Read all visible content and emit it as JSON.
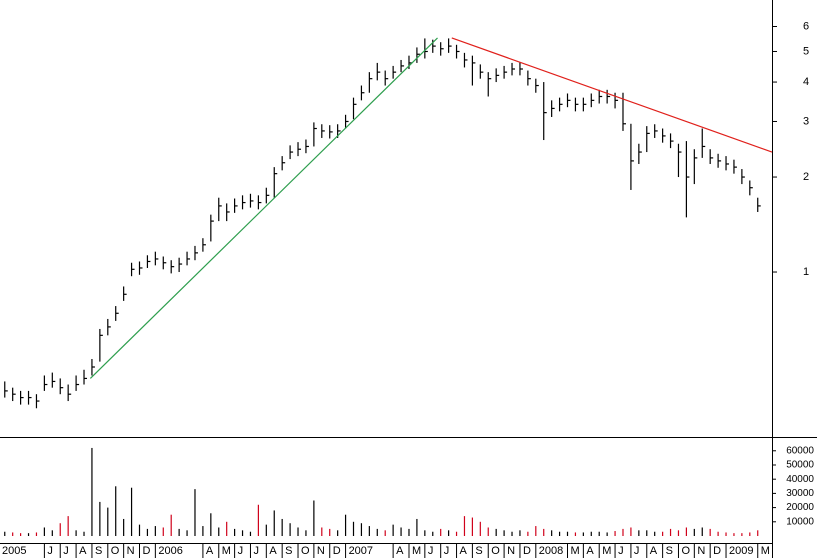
{
  "chart_data": [
    {
      "type": "ohlc",
      "log_scale": true,
      "x": [
        2.5,
        3,
        3.5,
        4,
        4.5,
        5,
        5.5,
        6,
        6.5,
        7,
        7.5,
        8,
        8.5,
        9,
        9.5,
        10,
        10.5,
        11,
        11.5,
        12,
        12.5,
        13,
        13.5,
        14,
        14.5,
        15,
        15.5,
        16,
        16.5,
        17,
        17.5,
        18,
        18.5,
        19,
        19.5,
        20,
        20.5,
        21,
        21.5,
        22,
        22.5,
        23,
        23.5,
        24,
        24.5,
        25,
        25.5,
        26,
        26.5,
        27,
        27.5,
        28,
        28.5,
        29,
        29.5,
        30,
        30.5,
        31,
        31.5,
        32,
        32.5,
        33,
        33.5,
        34,
        34.5,
        35,
        35.5,
        36,
        36.5,
        37,
        37.5,
        38,
        38.5,
        39,
        39.5,
        40,
        40.5,
        41,
        41.5,
        42,
        42.5,
        43,
        43.5,
        44,
        44.5,
        45,
        45.5,
        46,
        46.5,
        47,
        47.5,
        48,
        48.5,
        49,
        49.5,
        50
      ],
      "high": [
        0.45,
        0.43,
        0.42,
        0.42,
        0.41,
        0.47,
        0.48,
        0.46,
        0.44,
        0.47,
        0.49,
        0.53,
        0.66,
        0.71,
        0.78,
        0.9,
        1.07,
        1.08,
        1.13,
        1.16,
        1.12,
        1.09,
        1.11,
        1.16,
        1.21,
        1.28,
        1.52,
        1.72,
        1.65,
        1.71,
        1.75,
        1.77,
        1.75,
        1.85,
        2.15,
        2.33,
        2.52,
        2.58,
        2.63,
        2.98,
        2.94,
        2.92,
        2.94,
        3.15,
        3.57,
        3.9,
        4.3,
        4.6,
        4.35,
        4.5,
        4.7,
        4.85,
        5.15,
        5.5,
        5.45,
        5.35,
        5.5,
        5.25,
        4.95,
        4.85,
        4.55,
        4.3,
        4.42,
        4.5,
        4.6,
        4.62,
        4.35,
        4.1,
        4.0,
        3.5,
        3.57,
        3.68,
        3.57,
        3.57,
        3.68,
        3.78,
        3.78,
        3.7,
        3.7,
        2.95,
        2.55,
        2.9,
        2.94,
        2.85,
        2.75,
        2.55,
        2.6,
        2.45,
        2.85,
        2.45,
        2.37,
        2.33,
        2.27,
        2.12,
        1.95,
        1.72
      ],
      "low": [
        0.4,
        0.39,
        0.38,
        0.38,
        0.37,
        0.42,
        0.43,
        0.41,
        0.39,
        0.42,
        0.44,
        0.47,
        0.52,
        0.63,
        0.7,
        0.81,
        0.97,
        0.98,
        1.03,
        1.05,
        1.02,
        0.99,
        1.0,
        1.05,
        1.09,
        1.16,
        1.25,
        1.45,
        1.45,
        1.54,
        1.58,
        1.6,
        1.58,
        1.65,
        1.72,
        2.1,
        2.28,
        2.33,
        2.38,
        2.5,
        2.66,
        2.65,
        2.66,
        2.85,
        3.05,
        3.5,
        3.7,
        4.05,
        3.9,
        4.1,
        4.3,
        4.4,
        4.6,
        4.75,
        4.95,
        4.85,
        4.95,
        4.75,
        4.45,
        3.9,
        4.1,
        3.6,
        4.0,
        4.1,
        4.2,
        4.2,
        3.9,
        3.7,
        2.62,
        3.1,
        3.23,
        3.33,
        3.23,
        3.23,
        3.33,
        3.42,
        3.42,
        3.3,
        2.8,
        1.82,
        2.2,
        2.4,
        2.66,
        2.57,
        2.47,
        2.0,
        1.49,
        1.9,
        2.3,
        2.2,
        2.14,
        2.1,
        2.05,
        1.9,
        1.75,
        1.55
      ],
      "close": [
        0.42,
        0.41,
        0.4,
        0.4,
        0.39,
        0.44,
        0.45,
        0.43,
        0.41,
        0.44,
        0.46,
        0.5,
        0.63,
        0.67,
        0.74,
        0.85,
        1.02,
        1.03,
        1.08,
        1.1,
        1.07,
        1.04,
        1.06,
        1.1,
        1.15,
        1.22,
        1.45,
        1.62,
        1.55,
        1.62,
        1.66,
        1.68,
        1.66,
        1.75,
        2.05,
        2.22,
        2.4,
        2.45,
        2.5,
        2.85,
        2.8,
        2.78,
        2.8,
        3.0,
        3.4,
        3.7,
        4.1,
        4.3,
        4.1,
        4.3,
        4.5,
        4.6,
        4.9,
        5.0,
        5.2,
        5.1,
        5.2,
        5.0,
        4.7,
        4.6,
        4.3,
        4.1,
        4.2,
        4.3,
        4.4,
        4.4,
        4.1,
        3.9,
        3.2,
        3.3,
        3.4,
        3.5,
        3.4,
        3.4,
        3.5,
        3.6,
        3.6,
        3.5,
        2.95,
        2.25,
        2.4,
        2.75,
        2.8,
        2.7,
        2.6,
        2.4,
        2.0,
        2.3,
        2.5,
        2.3,
        2.25,
        2.2,
        2.15,
        2.0,
        1.85,
        1.62
      ],
      "color": "#000000",
      "xlim": [
        2.2,
        50.9
      ],
      "ylim": [
        0.3,
        7.28
      ],
      "yticks": [
        1,
        2,
        3,
        4,
        5,
        6
      ],
      "trendlines": [
        {
          "color": "#2e9e4e",
          "x": [
            7.9,
            29.8
          ],
          "y": [
            0.46,
            5.52
          ]
        },
        {
          "color": "#e0201b",
          "x": [
            30.7,
            50.9
          ],
          "y": [
            5.52,
            2.4
          ]
        }
      ]
    },
    {
      "type": "volume",
      "values": [
        3000,
        2500,
        2000,
        2000,
        2500,
        6000,
        4000,
        9000,
        14000,
        4000,
        3000,
        62000,
        24000,
        20000,
        35000,
        12000,
        34000,
        8000,
        5000,
        7000,
        6000,
        15000,
        5000,
        4000,
        33000,
        7000,
        16000,
        6000,
        10000,
        5000,
        4000,
        3000,
        22000,
        8000,
        18000,
        12000,
        9000,
        6000,
        4000,
        25000,
        6000,
        5000,
        4000,
        15000,
        10000,
        9000,
        7000,
        5000,
        4000,
        8000,
        6000,
        5000,
        12000,
        4000,
        3000,
        5000,
        4000,
        3000,
        14000,
        13000,
        10000,
        6000,
        5000,
        4000,
        3000,
        4000,
        3000,
        7000,
        5000,
        4000,
        3000,
        3000,
        2500,
        2500,
        3000,
        3000,
        2500,
        3500,
        5000,
        6000,
        4000,
        4000,
        3000,
        3000,
        5000,
        4000,
        6000,
        5000,
        6000,
        5000,
        3000,
        2500,
        2000,
        2000,
        2500,
        4000
      ],
      "up_color": "#000000",
      "down_color": "#d0021b",
      "ylim": [
        0,
        69000
      ],
      "yticks": [
        10000,
        20000,
        30000,
        40000,
        50000,
        60000
      ]
    },
    {
      "type": "time_axis",
      "xticks": [
        {
          "value": 0,
          "label": "2005"
        },
        {
          "value": 5,
          "label": "J"
        },
        {
          "value": 6,
          "label": "J"
        },
        {
          "value": 7,
          "label": "A"
        },
        {
          "value": 8,
          "label": "S"
        },
        {
          "value": 9,
          "label": "O"
        },
        {
          "value": 10,
          "label": "N"
        },
        {
          "value": 11,
          "label": "D"
        },
        {
          "value": 12,
          "label": "2006"
        },
        {
          "value": 15,
          "label": "A"
        },
        {
          "value": 16,
          "label": "M"
        },
        {
          "value": 17,
          "label": "J"
        },
        {
          "value": 18,
          "label": "J"
        },
        {
          "value": 19,
          "label": "A"
        },
        {
          "value": 20,
          "label": "S"
        },
        {
          "value": 21,
          "label": "O"
        },
        {
          "value": 22,
          "label": "N"
        },
        {
          "value": 23,
          "label": "D"
        },
        {
          "value": 24,
          "label": "2007"
        },
        {
          "value": 27,
          "label": "A"
        },
        {
          "value": 28,
          "label": "M"
        },
        {
          "value": 29,
          "label": "J"
        },
        {
          "value": 30,
          "label": "J"
        },
        {
          "value": 31,
          "label": "A"
        },
        {
          "value": 32,
          "label": "S"
        },
        {
          "value": 33,
          "label": "O"
        },
        {
          "value": 34,
          "label": "N"
        },
        {
          "value": 35,
          "label": "D"
        },
        {
          "value": 36,
          "label": "2008"
        },
        {
          "value": 38,
          "label": "M"
        },
        {
          "value": 39,
          "label": "A"
        },
        {
          "value": 40,
          "label": "M"
        },
        {
          "value": 41,
          "label": "J"
        },
        {
          "value": 42,
          "label": "J"
        },
        {
          "value": 43,
          "label": "A"
        },
        {
          "value": 44,
          "label": "S"
        },
        {
          "value": 45,
          "label": "O"
        },
        {
          "value": 46,
          "label": "N"
        },
        {
          "value": 47,
          "label": "D"
        },
        {
          "value": 48,
          "label": "2009"
        },
        {
          "value": 50,
          "label": "M"
        }
      ]
    }
  ]
}
